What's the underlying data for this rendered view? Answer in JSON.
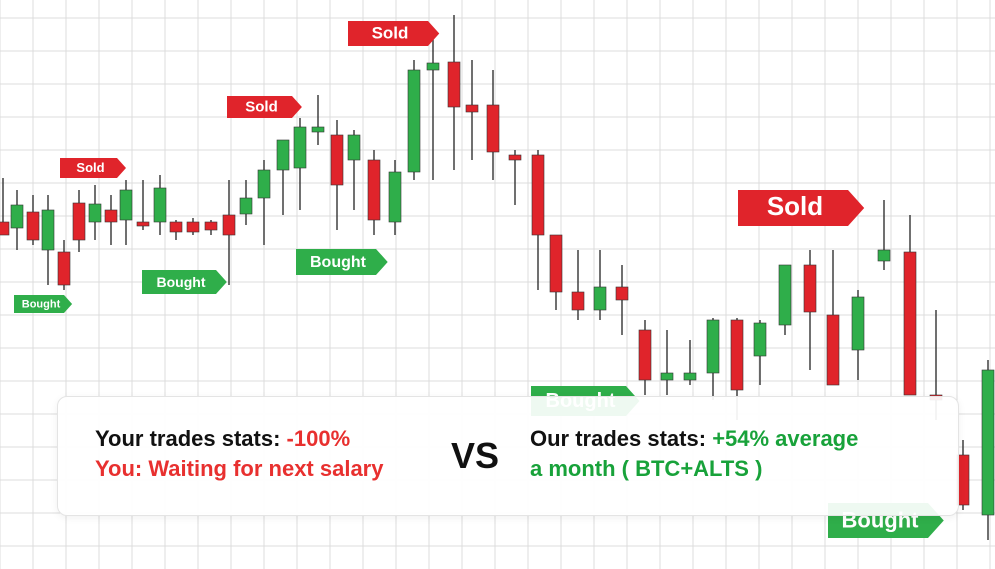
{
  "chart_data": {
    "type": "candlestick",
    "colors": {
      "up": "#2fae4a",
      "down": "#e0242b",
      "grid": "#dcdcdc",
      "sold_tag": "#e0242b",
      "bought_tag": "#2fae4a"
    },
    "candles": [
      {
        "open": "-",
        "high": "-",
        "low": "-",
        "close": "-",
        "dir": "down"
      },
      {
        "dir": "up"
      },
      {
        "dir": "down"
      },
      {
        "dir": "up"
      },
      {
        "dir": "down"
      },
      {
        "dir": "down"
      },
      {
        "dir": "up"
      },
      {
        "dir": "down"
      },
      {
        "dir": "up"
      },
      {
        "dir": "down"
      },
      {
        "dir": "up"
      },
      {
        "dir": "down"
      },
      {
        "dir": "down"
      },
      {
        "dir": "down"
      },
      {
        "dir": "down"
      },
      {
        "dir": "up"
      },
      {
        "dir": "up"
      },
      {
        "dir": "up"
      },
      {
        "dir": "up"
      },
      {
        "dir": "up"
      },
      {
        "dir": "down"
      },
      {
        "dir": "up"
      },
      {
        "dir": "down"
      },
      {
        "dir": "up"
      },
      {
        "dir": "up"
      },
      {
        "dir": "up"
      },
      {
        "dir": "down"
      },
      {
        "dir": "down"
      },
      {
        "dir": "down"
      },
      {
        "dir": "down"
      },
      {
        "dir": "down"
      },
      {
        "dir": "down"
      },
      {
        "dir": "down"
      },
      {
        "dir": "up"
      },
      {
        "dir": "down"
      },
      {
        "dir": "down"
      },
      {
        "dir": "up"
      },
      {
        "dir": "up"
      },
      {
        "dir": "up"
      },
      {
        "dir": "down"
      },
      {
        "dir": "up"
      },
      {
        "dir": "up"
      },
      {
        "dir": "down"
      },
      {
        "dir": "down"
      },
      {
        "dir": "up"
      },
      {
        "dir": "up"
      },
      {
        "dir": "down"
      },
      {
        "dir": "down"
      },
      {
        "dir": "down"
      },
      {
        "dir": "up"
      }
    ],
    "annotations": {
      "sold": [
        "Sold",
        "Sold",
        "Sold",
        "Sold"
      ],
      "bought": [
        "Bought",
        "Bought",
        "Bought",
        "Bought",
        "Bought"
      ]
    }
  },
  "stats": {
    "yours_label": "Your trades stats:",
    "yours_value": "-100%",
    "yours_note": "You: Waiting for next salary",
    "vs": "VS",
    "ours_label": "Our trades stats:",
    "ours_value": "+54% average",
    "ours_note": "a month ( BTC+ALTS )"
  }
}
